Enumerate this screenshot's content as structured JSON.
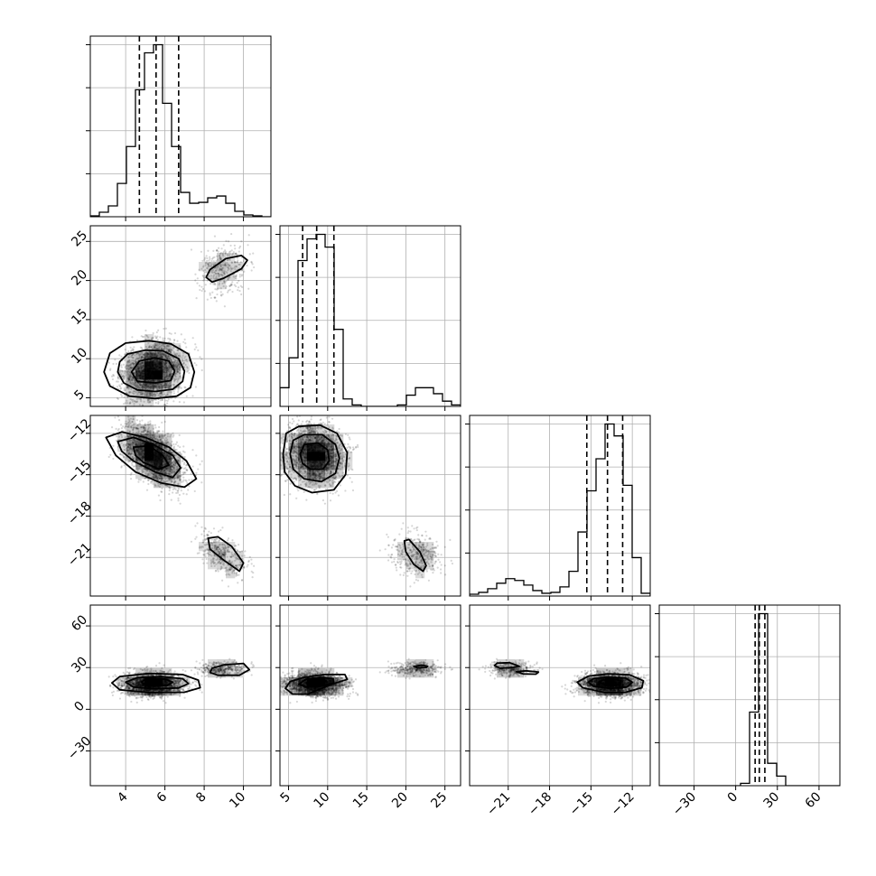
{
  "chart_data": {
    "type": "corner",
    "parameters": [
      {
        "range": [
          2.2,
          11.4
        ],
        "ticks": [
          {
            "value": 4,
            "label": "4"
          },
          {
            "value": 6,
            "label": "6"
          },
          {
            "value": 8,
            "label": "8"
          },
          {
            "value": 10,
            "label": "10"
          }
        ],
        "quantiles": [
          4.7,
          5.55,
          6.7
        ]
      },
      {
        "range": [
          3.9,
          27.0
        ],
        "ticks": [
          {
            "value": 5,
            "label": "5"
          },
          {
            "value": 10,
            "label": "10"
          },
          {
            "value": 15,
            "label": "15"
          },
          {
            "value": 20,
            "label": "20"
          },
          {
            "value": 25,
            "label": "25"
          }
        ],
        "quantiles": [
          6.8,
          8.6,
          10.8
        ]
      },
      {
        "range": [
          -23.8,
          -10.7
        ],
        "ticks": [
          {
            "value": -21,
            "label": "−21"
          },
          {
            "value": -18,
            "label": "−18"
          },
          {
            "value": -15,
            "label": "−15"
          },
          {
            "value": -12,
            "label": "−12"
          }
        ],
        "quantiles": [
          -15.3,
          -13.8,
          -12.7
        ]
      },
      {
        "range": [
          -55,
          75
        ],
        "ticks": [
          {
            "value": -30,
            "label": "−30"
          },
          {
            "value": 0,
            "label": "0"
          },
          {
            "value": 30,
            "label": "30"
          },
          {
            "value": 60,
            "label": "60"
          }
        ],
        "quantiles": [
          14,
          17,
          21
        ]
      }
    ],
    "histograms": [
      {
        "bin_edges": [
          2.2,
          2.66,
          3.12,
          3.58,
          4.04,
          4.5,
          4.96,
          5.42,
          5.88,
          6.34,
          6.8,
          7.26,
          7.72,
          8.18,
          8.64,
          9.1,
          9.56,
          10.02,
          10.48,
          10.94,
          11.4
        ],
        "counts": [
          1,
          5,
          12,
          37,
          78,
          141,
          182,
          191,
          126,
          78,
          27,
          15,
          16,
          21,
          23,
          15,
          6,
          2,
          1,
          0
        ]
      },
      {
        "bin_edges": [
          3.9,
          5.055,
          6.21,
          7.365,
          8.52,
          9.675,
          10.83,
          11.985,
          13.14,
          14.295,
          15.45,
          16.605,
          17.76,
          18.915,
          20.07,
          21.225,
          22.38,
          23.535,
          24.69,
          25.845,
          27.0
        ],
        "counts": [
          25,
          65,
          195,
          224,
          230,
          213,
          103,
          10,
          2,
          0,
          0,
          0,
          0,
          2,
          15,
          25,
          25,
          17,
          7,
          2
        ]
      },
      {
        "bin_edges": [
          -23.8,
          -23.145,
          -22.49,
          -21.835,
          -21.18,
          -20.525,
          -19.87,
          -19.215,
          -18.56,
          -17.905,
          -17.25,
          -16.595,
          -15.94,
          -15.285,
          -14.63,
          -13.975,
          -13.32,
          -12.665,
          -12.01,
          -11.355,
          -10.7
        ],
        "counts": [
          2,
          4,
          8,
          14,
          19,
          17,
          12,
          6,
          3,
          4,
          10,
          27,
          70,
          115,
          150,
          188,
          175,
          121,
          42,
          3
        ]
      },
      {
        "bin_edges": [
          -55,
          -48.5,
          -42,
          -35.5,
          -29,
          -22.5,
          -16,
          -9.5,
          -3,
          3.5,
          10,
          16.5,
          23,
          29.5,
          36,
          42.5,
          49,
          55.5,
          62,
          68.5,
          75
        ],
        "counts": [
          0,
          0,
          0,
          0,
          0,
          0,
          0,
          0,
          0,
          3,
          92,
          215,
          28,
          12,
          0,
          0,
          0,
          0,
          0,
          0
        ]
      }
    ],
    "modes": [
      {
        "weight": 0.86,
        "mean": [
          5.4,
          8.4,
          -13.6,
          18
        ],
        "sd": [
          0.75,
          1.8,
          1.05,
          4
        ]
      },
      {
        "weight": 0.14,
        "mean": [
          8.9,
          21.3,
          -20.8,
          29
        ],
        "sd": [
          0.6,
          1.7,
          0.75,
          2.5
        ]
      }
    ],
    "contours": [
      {
        "row": 1,
        "col": 0,
        "rings": [
          [
            [
              2.9,
              8.3
            ],
            [
              3.2,
              6.5
            ],
            [
              4.2,
              5.2
            ],
            [
              5.5,
              4.9
            ],
            [
              6.6,
              5.2
            ],
            [
              7.3,
              6.3
            ],
            [
              7.5,
              8.3
            ],
            [
              7.2,
              10.6
            ],
            [
              6.3,
              11.9
            ],
            [
              5.2,
              12.3
            ],
            [
              4.0,
              12.0
            ],
            [
              3.2,
              10.7
            ]
          ],
          [
            [
              3.6,
              8.3
            ],
            [
              3.9,
              6.9
            ],
            [
              4.6,
              6.0
            ],
            [
              5.5,
              5.8
            ],
            [
              6.4,
              6.1
            ],
            [
              6.9,
              7.1
            ],
            [
              7.0,
              8.4
            ],
            [
              6.7,
              10.0
            ],
            [
              5.9,
              11.0
            ],
            [
              5.0,
              11.1
            ],
            [
              4.1,
              10.6
            ],
            [
              3.7,
              9.6
            ]
          ],
          [
            [
              4.3,
              8.3
            ],
            [
              4.6,
              7.1
            ],
            [
              5.5,
              6.9
            ],
            [
              6.3,
              7.2
            ],
            [
              6.5,
              8.4
            ],
            [
              6.2,
              9.7
            ],
            [
              5.5,
              10.1
            ],
            [
              4.7,
              9.7
            ]
          ],
          [
            [
              8.1,
              20.4
            ],
            [
              8.4,
              19.8
            ],
            [
              9.0,
              20.3
            ],
            [
              9.9,
              21.5
            ],
            [
              10.2,
              22.6
            ],
            [
              9.9,
              23.2
            ],
            [
              9.1,
              22.8
            ],
            [
              8.3,
              21.4
            ]
          ]
        ]
      },
      {
        "row": 2,
        "col": 0,
        "rings": [
          [
            [
              3.0,
              -12.3
            ],
            [
              3.8,
              -11.9
            ],
            [
              5.0,
              -12.3
            ],
            [
              6.2,
              -13.0
            ],
            [
              7.1,
              -14.0
            ],
            [
              7.6,
              -15.3
            ],
            [
              7.0,
              -15.9
            ],
            [
              5.8,
              -15.6
            ],
            [
              4.5,
              -14.8
            ],
            [
              3.5,
              -13.6
            ]
          ],
          [
            [
              3.6,
              -12.6
            ],
            [
              4.4,
              -12.3
            ],
            [
              5.4,
              -12.8
            ],
            [
              6.4,
              -13.6
            ],
            [
              6.8,
              -14.5
            ],
            [
              6.4,
              -15.2
            ],
            [
              5.5,
              -14.8
            ],
            [
              4.4,
              -14.0
            ],
            [
              3.8,
              -13.3
            ]
          ],
          [
            [
              4.4,
              -13.0
            ],
            [
              5.2,
              -12.9
            ],
            [
              5.9,
              -13.6
            ],
            [
              6.2,
              -14.3
            ],
            [
              5.7,
              -14.6
            ],
            [
              4.9,
              -14.1
            ],
            [
              4.5,
              -13.6
            ]
          ],
          [
            [
              8.2,
              -19.6
            ],
            [
              8.7,
              -19.5
            ],
            [
              9.4,
              -20.2
            ],
            [
              10.0,
              -21.4
            ],
            [
              9.8,
              -22.0
            ],
            [
              9.0,
              -21.2
            ],
            [
              8.3,
              -20.4
            ]
          ]
        ]
      },
      {
        "row": 2,
        "col": 1,
        "rings": [
          [
            [
              4.3,
              -13.5
            ],
            [
              4.7,
              -12.0
            ],
            [
              6.3,
              -11.5
            ],
            [
              9.0,
              -11.4
            ],
            [
              11.2,
              -12.0
            ],
            [
              12.5,
              -13.4
            ],
            [
              12.3,
              -15.0
            ],
            [
              10.8,
              -16.1
            ],
            [
              8.0,
              -16.3
            ],
            [
              5.8,
              -15.8
            ],
            [
              4.5,
              -14.8
            ]
          ],
          [
            [
              5.2,
              -13.5
            ],
            [
              5.6,
              -12.5
            ],
            [
              7.0,
              -12.1
            ],
            [
              9.3,
              -12.1
            ],
            [
              11.0,
              -12.8
            ],
            [
              11.5,
              -13.8
            ],
            [
              11.0,
              -14.9
            ],
            [
              9.2,
              -15.5
            ],
            [
              7.0,
              -15.3
            ],
            [
              5.6,
              -14.6
            ]
          ],
          [
            [
              6.5,
              -13.5
            ],
            [
              7.0,
              -12.8
            ],
            [
              8.8,
              -12.7
            ],
            [
              10.0,
              -13.2
            ],
            [
              10.2,
              -14.0
            ],
            [
              9.4,
              -14.6
            ],
            [
              7.8,
              -14.6
            ],
            [
              6.8,
              -14.2
            ]
          ],
          [
            [
              19.8,
              -19.8
            ],
            [
              20.4,
              -19.7
            ],
            [
              21.8,
              -20.6
            ],
            [
              22.6,
              -21.6
            ],
            [
              22.2,
              -22.0
            ],
            [
              21.0,
              -21.5
            ],
            [
              20.0,
              -20.6
            ]
          ]
        ]
      },
      {
        "row": 3,
        "col": 0,
        "rings": [
          [
            [
              3.3,
              19.0
            ],
            [
              3.7,
              14.0
            ],
            [
              5.2,
              12.0
            ],
            [
              7.0,
              12.3
            ],
            [
              7.8,
              15.5
            ],
            [
              7.7,
              21.0
            ],
            [
              6.9,
              25.0
            ],
            [
              5.2,
              25.8
            ],
            [
              3.7,
              23.5
            ]
          ],
          [
            [
              4.0,
              19.5
            ],
            [
              4.4,
              16.0
            ],
            [
              5.4,
              14.8
            ],
            [
              6.7,
              15.3
            ],
            [
              7.2,
              18.5
            ],
            [
              6.9,
              22.0
            ],
            [
              5.8,
              23.5
            ],
            [
              4.6,
              22.8
            ]
          ],
          [
            [
              4.8,
              19.5
            ],
            [
              5.1,
              17.0
            ],
            [
              6.1,
              17.0
            ],
            [
              6.4,
              19.5
            ],
            [
              6.0,
              21.8
            ],
            [
              5.0,
              21.5
            ]
          ],
          [
            [
              8.3,
              26.5
            ],
            [
              8.7,
              24.5
            ],
            [
              9.8,
              24.5
            ],
            [
              10.3,
              28.5
            ],
            [
              10.0,
              33.0
            ],
            [
              9.0,
              32.0
            ],
            [
              8.4,
              29.5
            ]
          ]
        ]
      },
      {
        "row": 3,
        "col": 1,
        "rings": [
          [
            [
              4.6,
              15.0
            ],
            [
              5.5,
              11.0
            ],
            [
              7.5,
              11.0
            ],
            [
              10.5,
              18.0
            ],
            [
              12.5,
              21.5
            ],
            [
              12.2,
              25.0
            ],
            [
              9.5,
              25.0
            ],
            [
              7.0,
              23.0
            ],
            [
              5.2,
              20.0
            ]
          ],
          [
            [
              6.3,
              18.0
            ],
            [
              7.2,
              16.0
            ],
            [
              9.0,
              16.5
            ],
            [
              10.8,
              19.0
            ],
            [
              10.7,
              22.0
            ],
            [
              9.0,
              23.0
            ],
            [
              7.2,
              21.5
            ]
          ],
          [
            [
              7.3,
              19.0
            ],
            [
              8.0,
              17.5
            ],
            [
              9.4,
              18.0
            ],
            [
              9.8,
              20.5
            ],
            [
              8.6,
              21.5
            ]
          ],
          [
            [
              21.0,
              30.8
            ],
            [
              21.5,
              29.8
            ],
            [
              22.6,
              30.0
            ],
            [
              22.8,
              31.0
            ],
            [
              22.0,
              31.8
            ]
          ]
        ]
      },
      {
        "row": 3,
        "col": 2,
        "rings": [
          [
            [
              -16.0,
              19.5
            ],
            [
              -15.6,
              15.5
            ],
            [
              -14.0,
              12.0
            ],
            [
              -12.5,
              12.2
            ],
            [
              -11.3,
              15.5
            ],
            [
              -11.2,
              20.5
            ],
            [
              -12.2,
              24.8
            ],
            [
              -13.8,
              25.5
            ],
            [
              -15.2,
              23.8
            ]
          ],
          [
            [
              -15.2,
              19.5
            ],
            [
              -14.8,
              16.5
            ],
            [
              -13.6,
              15.0
            ],
            [
              -12.4,
              16.0
            ],
            [
              -12.0,
              19.5
            ],
            [
              -12.5,
              22.5
            ],
            [
              -13.8,
              23.2
            ],
            [
              -14.8,
              22.0
            ]
          ],
          [
            [
              -14.4,
              19.5
            ],
            [
              -13.9,
              17.5
            ],
            [
              -13.0,
              17.8
            ],
            [
              -12.8,
              20.5
            ],
            [
              -13.4,
              21.8
            ],
            [
              -14.2,
              21.0
            ]
          ],
          [
            [
              -22.0,
              31.5
            ],
            [
              -21.6,
              29.5
            ],
            [
              -20.7,
              30.0
            ],
            [
              -20.2,
              31.0
            ],
            [
              -20.9,
              33.5
            ],
            [
              -21.8,
              33.2
            ]
          ],
          [
            [
              -20.4,
              27.0
            ],
            [
              -19.9,
              25.4
            ],
            [
              -19.0,
              25.3
            ],
            [
              -18.8,
              26.8
            ],
            [
              -19.7,
              27.7
            ]
          ]
        ]
      }
    ]
  }
}
